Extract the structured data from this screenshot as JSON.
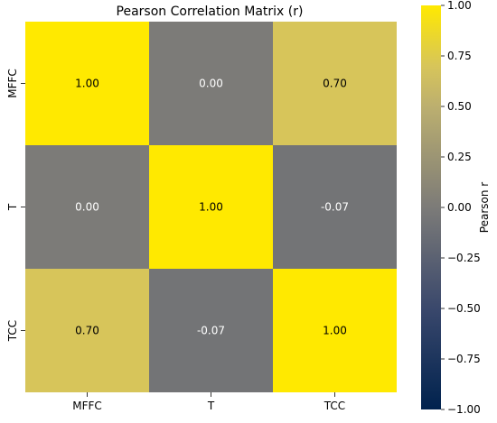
{
  "chart_data": {
    "type": "heatmap",
    "title": "Pearson Correlation Matrix (r)",
    "row_labels": [
      "MFFC",
      "T",
      "TCC"
    ],
    "col_labels": [
      "MFFC",
      "T",
      "TCC"
    ],
    "values": [
      [
        1.0,
        0.0,
        0.7
      ],
      [
        0.0,
        1.0,
        -0.07
      ],
      [
        0.7,
        -0.07,
        1.0
      ]
    ],
    "annotations": [
      [
        "1.00",
        "0.00",
        "0.70"
      ],
      [
        "0.00",
        "1.00",
        "-0.07"
      ],
      [
        "0.70",
        "-0.07",
        "1.00"
      ]
    ],
    "colormap": "cividis",
    "vmin": -1.0,
    "vmax": 1.0,
    "colorbar": {
      "label": "Pearson r",
      "ticks": [
        1.0,
        0.75,
        0.5,
        0.25,
        0.0,
        -0.25,
        -0.5,
        -0.75,
        -1.0
      ],
      "tick_labels": [
        "1.00",
        "0.75",
        "0.50",
        "0.25",
        "0.00",
        "−0.25",
        "−0.50",
        "−0.75",
        "−1.00"
      ]
    }
  }
}
